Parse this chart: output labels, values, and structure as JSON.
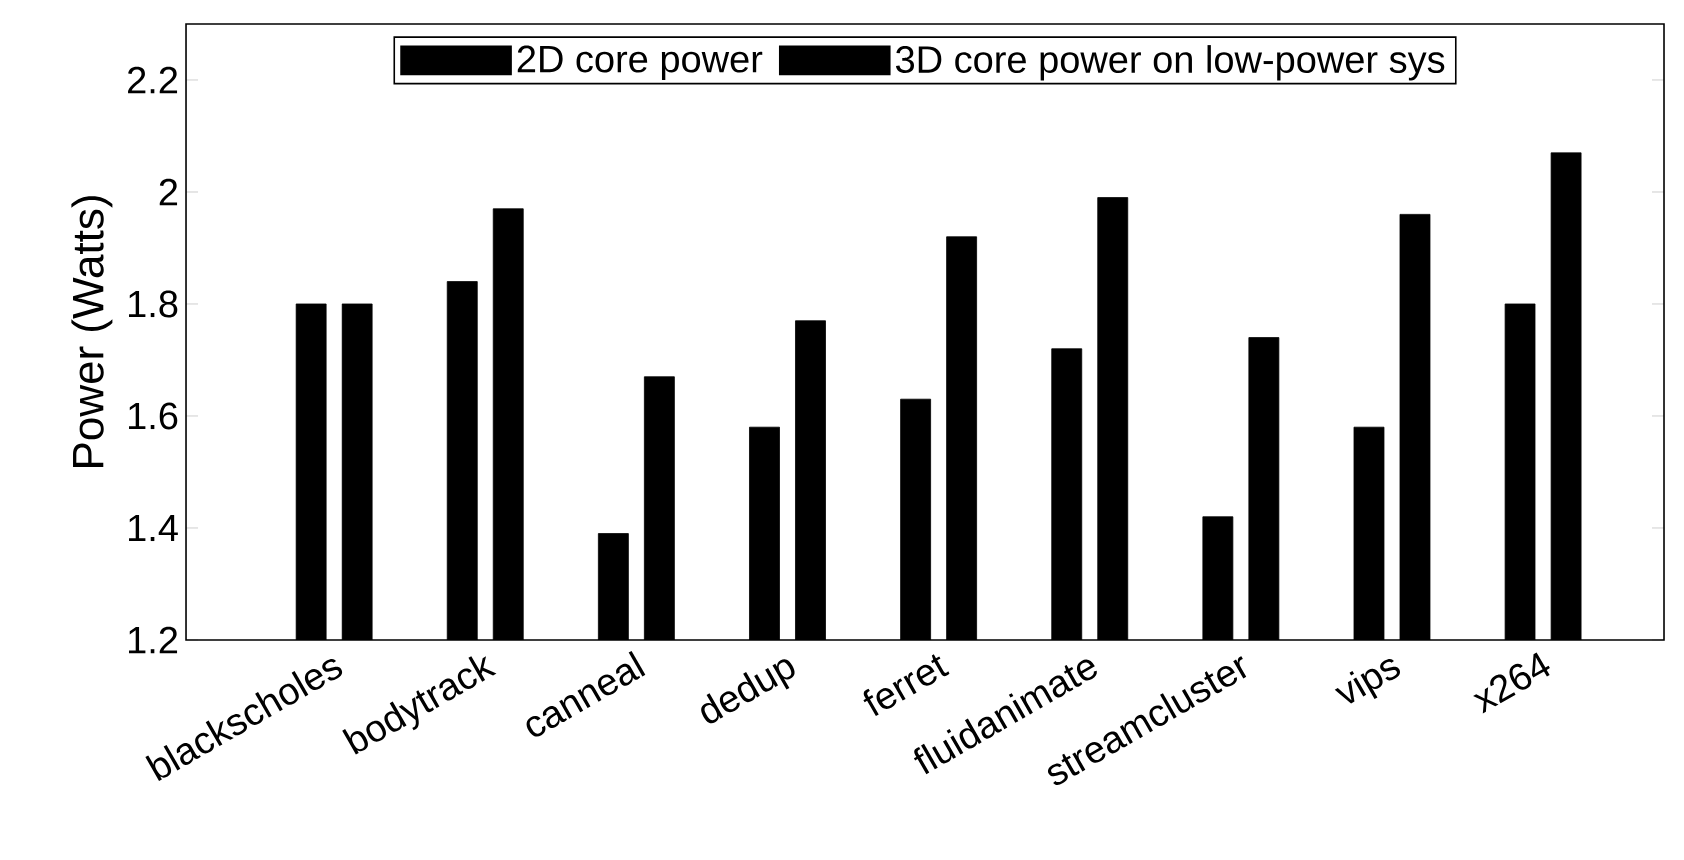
{
  "chart_data": {
    "type": "bar",
    "ylabel": "Power (Watts)",
    "categories": [
      "blackscholes",
      "bodytrack",
      "canneal",
      "dedup",
      "ferret",
      "fluidanimate",
      "streamcluster",
      "vips",
      "x264"
    ],
    "series": [
      {
        "name": "2D core power",
        "color": "#000000",
        "values": [
          1.8,
          1.84,
          1.39,
          1.58,
          1.63,
          1.72,
          1.42,
          1.58,
          1.8
        ]
      },
      {
        "name": "3D core power on low-power sys",
        "color": "#000000",
        "values": [
          1.8,
          1.97,
          1.67,
          1.77,
          1.92,
          1.99,
          1.74,
          1.96,
          2.07
        ]
      }
    ],
    "ylim": [
      1.2,
      2.3
    ],
    "yticks": [
      1.2,
      1.4,
      1.6,
      1.8,
      2,
      2.2
    ],
    "legend": "top",
    "grid": false
  }
}
